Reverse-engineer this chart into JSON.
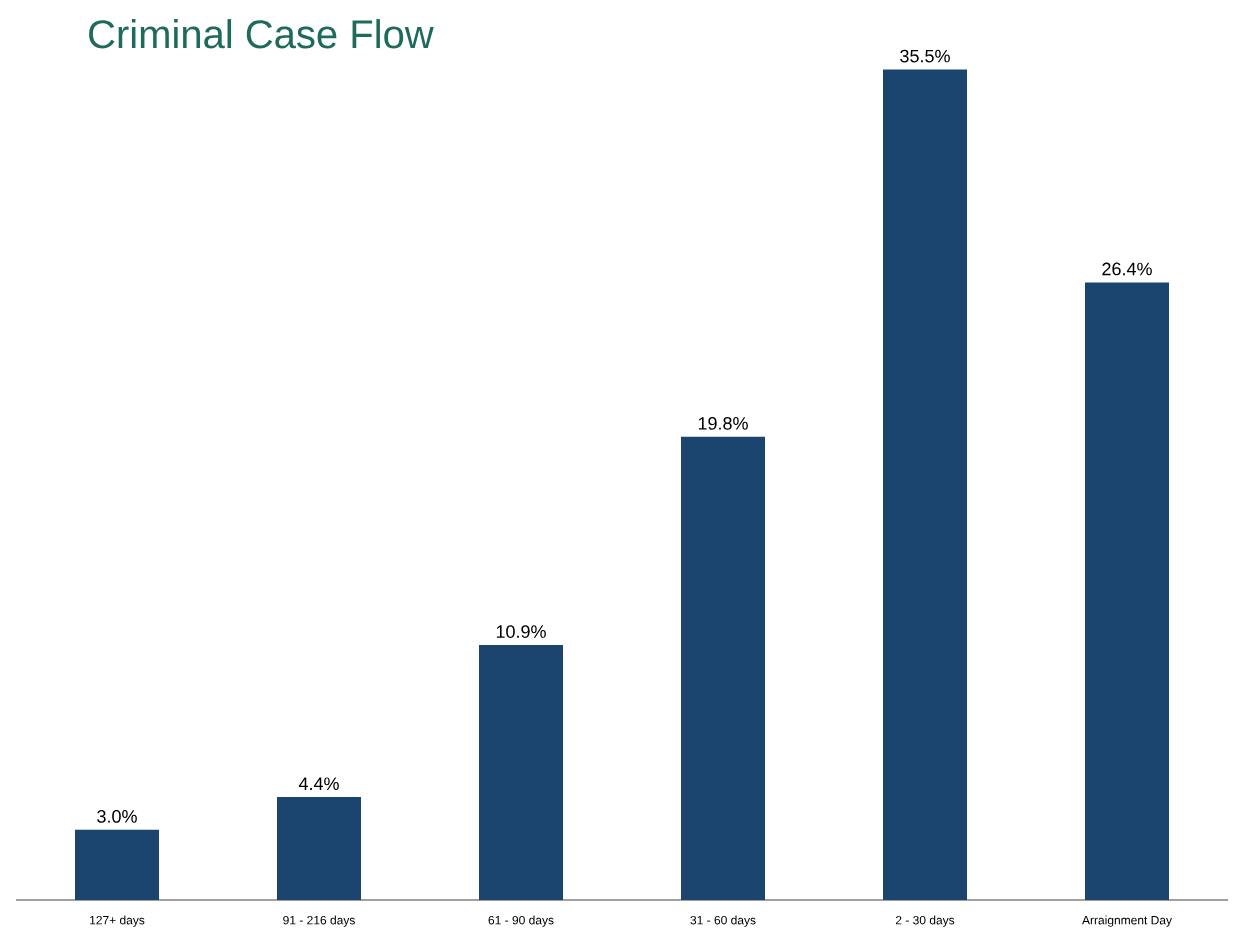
{
  "chart_data": {
    "type": "bar",
    "title": "Criminal Case Flow",
    "categories": [
      "127+ days",
      "91 - 216 days",
      "61 - 90 days",
      "31 - 60 days",
      "2 - 30 days",
      "Arraignment Day"
    ],
    "values": [
      3.0,
      4.4,
      10.9,
      19.8,
      35.5,
      26.4
    ],
    "value_labels": [
      "3.0%",
      "4.4%",
      "10.9%",
      "19.8%",
      "35.5%",
      "26.4%"
    ],
    "color": "#1b456e"
  }
}
